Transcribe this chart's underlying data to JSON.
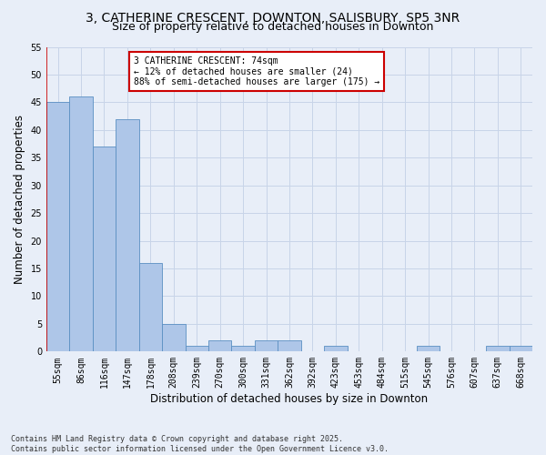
{
  "title": "3, CATHERINE CRESCENT, DOWNTON, SALISBURY, SP5 3NR",
  "subtitle": "Size of property relative to detached houses in Downton",
  "xlabel": "Distribution of detached houses by size in Downton",
  "ylabel": "Number of detached properties",
  "footer": "Contains HM Land Registry data © Crown copyright and database right 2025.\nContains public sector information licensed under the Open Government Licence v3.0.",
  "categories": [
    "55sqm",
    "86sqm",
    "116sqm",
    "147sqm",
    "178sqm",
    "208sqm",
    "239sqm",
    "270sqm",
    "300sqm",
    "331sqm",
    "362sqm",
    "392sqm",
    "423sqm",
    "453sqm",
    "484sqm",
    "515sqm",
    "545sqm",
    "576sqm",
    "607sqm",
    "637sqm",
    "668sqm"
  ],
  "values": [
    45,
    46,
    37,
    42,
    16,
    5,
    1,
    2,
    1,
    2,
    2,
    0,
    1,
    0,
    0,
    0,
    1,
    0,
    0,
    1,
    1
  ],
  "bar_color": "#aec6e8",
  "bar_edge_color": "#5a8fc2",
  "annotation_text": "3 CATHERINE CRESCENT: 74sqm\n← 12% of detached houses are smaller (24)\n88% of semi-detached houses are larger (175) →",
  "annotation_box_color": "#ffffff",
  "annotation_box_edge_color": "#cc0000",
  "vline_color": "#cc0000",
  "ylim": [
    0,
    55
  ],
  "yticks": [
    0,
    5,
    10,
    15,
    20,
    25,
    30,
    35,
    40,
    45,
    50,
    55
  ],
  "grid_color": "#c8d4e8",
  "bg_color": "#e8eef8",
  "title_fontsize": 10,
  "subtitle_fontsize": 9,
  "tick_fontsize": 7,
  "label_fontsize": 8.5,
  "footer_fontsize": 6,
  "annotation_fontsize": 7
}
